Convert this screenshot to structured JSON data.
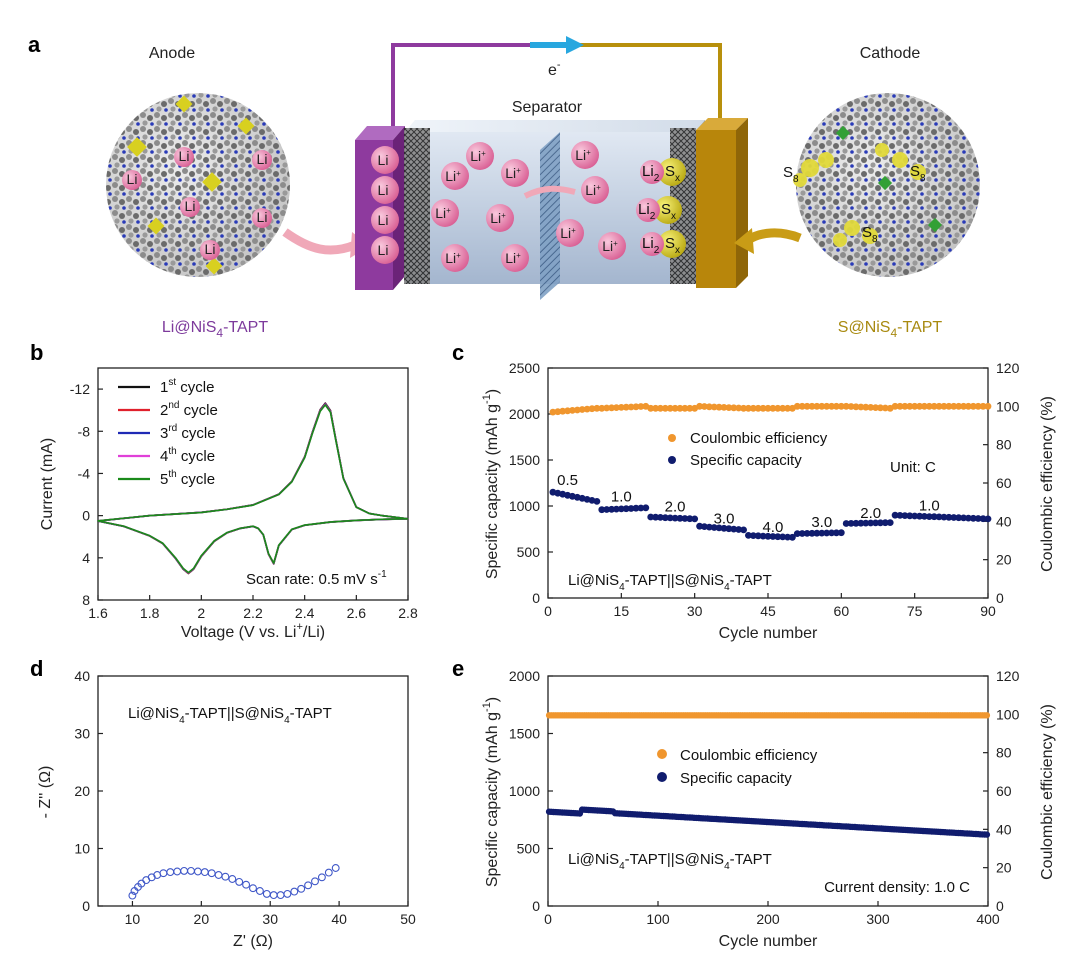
{
  "panel_a": {
    "label": "a",
    "anode_label": "Anode",
    "cathode_label": "Cathode",
    "electron_label": "e",
    "electron_sup": "-",
    "separator_label": "Separator",
    "anode_material": "Li@NiS",
    "anode_material_sub": "4",
    "anode_material_suffix": "-TAPT",
    "cathode_material": "S@NiS",
    "cathode_material_sub": "4",
    "cathode_material_suffix": "-TAPT",
    "ion_label": "Li",
    "ion_sup": "+",
    "s8_label": "S",
    "s8_sub": "8",
    "sx_label": "S",
    "sx_sub": "x",
    "li2_label": "Li",
    "li2_sub": "2",
    "colors": {
      "anode": "#8e3a9e",
      "cathode": "#b8860b",
      "ion": "#e87aa8",
      "sulfur": "#d8d020",
      "arrow": "#28a7df"
    }
  },
  "chart_data": [
    {
      "id": "b",
      "panel_label": "b",
      "type": "line",
      "xlabel": "Voltage (V vs. Li",
      "xlabel_sup": "+",
      "xlabel_suffix": "/Li)",
      "ylabel": "Current (mA)",
      "xlim": [
        1.6,
        2.8
      ],
      "ylim": [
        8,
        -14
      ],
      "y_inverted": true,
      "xticks": [
        1.6,
        1.8,
        2.0,
        2.2,
        2.4,
        2.6,
        2.8
      ],
      "yticks": [
        -12,
        -8,
        -4,
        0,
        4,
        8
      ],
      "annotation": "Scan rate: 0.5 mV s",
      "annotation_sup": "-1",
      "legend_position": "top-left",
      "series": [
        {
          "name": "1",
          "sup": "st",
          "suffix": " cycle",
          "color": "#111111"
        },
        {
          "name": "2",
          "sup": "nd",
          "suffix": " cycle",
          "color": "#e0202c"
        },
        {
          "name": "3",
          "sup": "rd",
          "suffix": " cycle",
          "color": "#1f2ab5"
        },
        {
          "name": "4",
          "sup": "th",
          "suffix": " cycle",
          "color": "#e040d8"
        },
        {
          "name": "5",
          "sup": "th",
          "suffix": " cycle",
          "color": "#1a8a1a"
        }
      ],
      "cathodic_scan": {
        "v": [
          2.8,
          2.7,
          2.6,
          2.5,
          2.4,
          2.35,
          2.3,
          2.28,
          2.26,
          2.24,
          2.22,
          2.2,
          2.15,
          2.1,
          2.05,
          2.0,
          1.97,
          1.95,
          1.93,
          1.9,
          1.85,
          1.8,
          1.7,
          1.6
        ],
        "i": [
          0.3,
          0.35,
          0.45,
          0.6,
          0.9,
          1.3,
          2.8,
          4.5,
          3.6,
          1.8,
          1.2,
          1.0,
          1.2,
          1.6,
          2.4,
          3.8,
          5.0,
          5.4,
          5.0,
          4.0,
          2.6,
          1.9,
          1.0,
          0.5
        ]
      },
      "anodic_scan": {
        "v": [
          1.6,
          1.8,
          2.0,
          2.1,
          2.2,
          2.3,
          2.35,
          2.4,
          2.43,
          2.46,
          2.48,
          2.5,
          2.52,
          2.55,
          2.6,
          2.65,
          2.7,
          2.8
        ],
        "i": [
          0.5,
          0.0,
          -0.3,
          -0.6,
          -1.0,
          -2.0,
          -3.2,
          -5.5,
          -7.8,
          -9.9,
          -10.5,
          -9.8,
          -7.2,
          -3.5,
          -0.8,
          -0.2,
          0.0,
          0.3
        ]
      }
    },
    {
      "id": "c",
      "panel_label": "c",
      "type": "scatter",
      "xlabel": "Cycle number",
      "ylabel": "Specific capacity (mAh g",
      "ylabel_sup": "-1",
      "ylabel_suffix": ")",
      "y2label": "Coulombic efficiency (%)",
      "xlim": [
        0,
        90
      ],
      "ylim": [
        0,
        2500
      ],
      "y2lim": [
        0,
        120
      ],
      "xticks": [
        0,
        15,
        30,
        45,
        60,
        75,
        90
      ],
      "yticks": [
        0,
        500,
        1000,
        1500,
        2000,
        2500
      ],
      "y2ticks": [
        0,
        20,
        40,
        60,
        80,
        100,
        120
      ],
      "legend_position": "middle",
      "unit_text": "Unit: C",
      "cell_label": "Li@NiS",
      "cell_sub1": "4",
      "cell_mid": "-TAPT||S@NiS",
      "cell_sub2": "4",
      "cell_suffix": "-TAPT",
      "rate_labels": [
        {
          "text": "0.5",
          "x": 4,
          "y": 1230
        },
        {
          "text": "1.0",
          "x": 15,
          "y": 1050
        },
        {
          "text": "2.0",
          "x": 26,
          "y": 940
        },
        {
          "text": "3.0",
          "x": 36,
          "y": 810
        },
        {
          "text": "4.0",
          "x": 46,
          "y": 720
        },
        {
          "text": "3.0",
          "x": 56,
          "y": 770
        },
        {
          "text": "2.0",
          "x": 66,
          "y": 870
        },
        {
          "text": "1.0",
          "x": 78,
          "y": 950
        }
      ],
      "series": [
        {
          "name": "Coulombic efficiency",
          "axis": "right",
          "color": "#f0962e",
          "marker": "circle",
          "segments": [
            {
              "x_start": 1,
              "x_end": 10,
              "y_start": 97,
              "y_end": 99
            },
            {
              "x_start": 11,
              "x_end": 20,
              "y_start": 99,
              "y_end": 100
            },
            {
              "x_start": 21,
              "x_end": 30,
              "y_start": 99,
              "y_end": 99
            },
            {
              "x_start": 31,
              "x_end": 40,
              "y_start": 100,
              "y_end": 99
            },
            {
              "x_start": 41,
              "x_end": 50,
              "y_start": 99,
              "y_end": 99
            },
            {
              "x_start": 51,
              "x_end": 60,
              "y_start": 100,
              "y_end": 100
            },
            {
              "x_start": 61,
              "x_end": 70,
              "y_start": 100,
              "y_end": 99
            },
            {
              "x_start": 71,
              "x_end": 90,
              "y_start": 100,
              "y_end": 100
            }
          ]
        },
        {
          "name": "Specific capacity",
          "axis": "left",
          "color": "#101c6e",
          "marker": "circle",
          "segments": [
            {
              "x_start": 1,
              "x_end": 10,
              "y_start": 1150,
              "y_end": 1050
            },
            {
              "x_start": 11,
              "x_end": 20,
              "y_start": 960,
              "y_end": 980
            },
            {
              "x_start": 21,
              "x_end": 30,
              "y_start": 880,
              "y_end": 860
            },
            {
              "x_start": 31,
              "x_end": 40,
              "y_start": 780,
              "y_end": 740
            },
            {
              "x_start": 41,
              "x_end": 50,
              "y_start": 680,
              "y_end": 660
            },
            {
              "x_start": 51,
              "x_end": 60,
              "y_start": 700,
              "y_end": 710
            },
            {
              "x_start": 61,
              "x_end": 70,
              "y_start": 810,
              "y_end": 820
            },
            {
              "x_start": 71,
              "x_end": 90,
              "y_start": 900,
              "y_end": 860
            }
          ]
        }
      ]
    },
    {
      "id": "d",
      "panel_label": "d",
      "type": "scatter",
      "xlabel": "Z' (Ω)",
      "ylabel": "- Z'' (Ω)",
      "xlim": [
        5,
        50
      ],
      "ylim": [
        0,
        40
      ],
      "xticks": [
        10,
        20,
        30,
        40,
        50
      ],
      "yticks": [
        0,
        10,
        20,
        30,
        40
      ],
      "cell_label": "Li@NiS",
      "cell_sub1": "4",
      "cell_mid": "-TAPT||S@NiS",
      "cell_sub2": "4",
      "cell_suffix": "-TAPT",
      "series": [
        {
          "name": "",
          "color": "#4058c8",
          "marker": "open-circle",
          "x": [
            10.0,
            10.3,
            10.8,
            11.3,
            12.0,
            12.8,
            13.6,
            14.5,
            15.5,
            16.5,
            17.5,
            18.5,
            19.5,
            20.5,
            21.5,
            22.5,
            23.5,
            24.5,
            25.5,
            26.5,
            27.5,
            28.5,
            29.5,
            30.5,
            31.5,
            32.5,
            33.5,
            34.5,
            35.5,
            36.5,
            37.5,
            38.5,
            39.5
          ],
          "y": [
            1.8,
            2.6,
            3.3,
            3.9,
            4.5,
            5.0,
            5.4,
            5.7,
            5.9,
            6.0,
            6.1,
            6.1,
            6.0,
            5.9,
            5.7,
            5.4,
            5.1,
            4.7,
            4.2,
            3.7,
            3.1,
            2.6,
            2.1,
            1.9,
            1.9,
            2.1,
            2.5,
            3.0,
            3.6,
            4.3,
            5.0,
            5.8,
            6.6
          ]
        }
      ]
    },
    {
      "id": "e",
      "panel_label": "e",
      "type": "scatter",
      "xlabel": "Cycle number",
      "ylabel": "Specific capacity (mAh g",
      "ylabel_sup": "-1",
      "ylabel_suffix": ")",
      "y2label": "Coulombic efficiency (%)",
      "xlim": [
        0,
        400
      ],
      "ylim": [
        0,
        2000
      ],
      "y2lim": [
        0,
        120
      ],
      "xticks": [
        0,
        100,
        200,
        300,
        400
      ],
      "yticks": [
        0,
        500,
        1000,
        1500,
        2000
      ],
      "y2ticks": [
        0,
        20,
        40,
        60,
        80,
        100,
        120
      ],
      "legend_position": "middle",
      "annotation": "Current density: 1.0 C",
      "cell_label": "Li@NiS",
      "cell_sub1": "4",
      "cell_mid": "-TAPT||S@NiS",
      "cell_sub2": "4",
      "cell_suffix": "-TAPT",
      "series": [
        {
          "name": "Coulombic efficiency",
          "axis": "right",
          "color": "#f0962e",
          "marker": "circle",
          "x_start": 1,
          "x_end": 400,
          "y_start": 99.5,
          "y_end": 99.5
        },
        {
          "name": "Specific capacity",
          "axis": "left",
          "color": "#101c6e",
          "marker": "circle",
          "x_start": 1,
          "x_end": 400,
          "y_start": 840,
          "y_end": 620
        }
      ]
    }
  ]
}
